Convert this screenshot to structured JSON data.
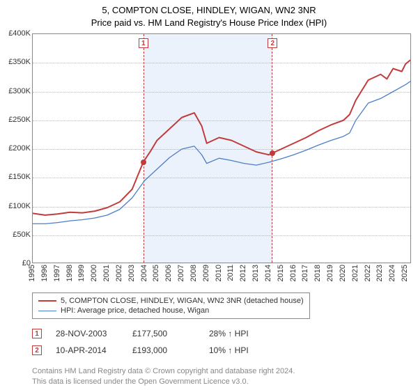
{
  "title_line1": "5, COMPTON CLOSE, HINDLEY, WIGAN, WN2 3NR",
  "title_line2": "Price paid vs. HM Land Registry's House Price Index (HPI)",
  "chart": {
    "type": "line",
    "background_color": "#ffffff",
    "grid_color": "#bbbbbb",
    "border_color": "#888888",
    "x_min": 1995,
    "x_max": 2025.5,
    "years": [
      1995,
      1996,
      1997,
      1998,
      1999,
      2000,
      2001,
      2002,
      2003,
      2004,
      2005,
      2006,
      2007,
      2008,
      2009,
      2010,
      2011,
      2012,
      2013,
      2014,
      2015,
      2016,
      2017,
      2018,
      2019,
      2020,
      2021,
      2022,
      2023,
      2024,
      2025
    ],
    "ylim": [
      0,
      400000
    ],
    "ytick_step": 50000,
    "yticklabels": [
      "£0",
      "£50K",
      "£100K",
      "£150K",
      "£200K",
      "£250K",
      "£300K",
      "£350K",
      "£400K"
    ],
    "shaded_from_year": 2003.9,
    "shaded_to_year": 2014.3,
    "shade_color": "rgba(70,130,220,0.10)",
    "shade_border_color": "#c23b3b",
    "series": [
      {
        "name": "price_paid",
        "label": "5, COMPTON CLOSE, HINDLEY, WIGAN, WN2 3NR (detached house)",
        "color": "#c23b3b",
        "line_width": 2,
        "x": [
          1995,
          1996,
          1997,
          1998,
          1999,
          2000,
          2001,
          2002,
          2003,
          2003.9,
          2004.5,
          2005,
          2006,
          2007,
          2008,
          2008.6,
          2009,
          2010,
          2011,
          2012,
          2013,
          2014,
          2014.3,
          2015,
          2016,
          2017,
          2018,
          2019,
          2020,
          2020.5,
          2021,
          2022,
          2023,
          2023.5,
          2024,
          2024.7,
          2025,
          2025.4
        ],
        "y": [
          88000,
          85000,
          87000,
          90000,
          89000,
          92000,
          98000,
          108000,
          130000,
          177500,
          197000,
          215000,
          235000,
          255000,
          263000,
          240000,
          210000,
          220000,
          215000,
          205000,
          195000,
          190000,
          193000,
          200000,
          210000,
          220000,
          232000,
          242000,
          250000,
          260000,
          285000,
          320000,
          330000,
          322000,
          340000,
          335000,
          348000,
          355000
        ]
      },
      {
        "name": "hpi",
        "label": "HPI: Average price, detached house, Wigan",
        "color": "#4a7ec8",
        "line_width": 1.3,
        "x": [
          1995,
          1996,
          1997,
          1998,
          1999,
          2000,
          2001,
          2002,
          2003,
          2004,
          2005,
          2006,
          2007,
          2008,
          2008.6,
          2009,
          2010,
          2011,
          2012,
          2013,
          2014,
          2015,
          2016,
          2017,
          2018,
          2019,
          2020,
          2020.5,
          2021,
          2022,
          2023,
          2024,
          2025,
          2025.4
        ],
        "y": [
          70000,
          70000,
          72000,
          75000,
          77000,
          80000,
          85000,
          95000,
          115000,
          145000,
          165000,
          185000,
          200000,
          205000,
          190000,
          175000,
          184000,
          180000,
          175000,
          172000,
          177000,
          183000,
          190000,
          198000,
          207000,
          215000,
          222000,
          228000,
          250000,
          280000,
          288000,
          300000,
          312000,
          318000
        ]
      }
    ]
  },
  "sale_markers": [
    {
      "n": "1",
      "year": 2003.9,
      "price": 177500,
      "date": "28-NOV-2003",
      "price_label": "£177,500",
      "delta": "28% ↑ HPI"
    },
    {
      "n": "2",
      "year": 2014.3,
      "price": 193000,
      "date": "10-APR-2014",
      "price_label": "£193,000",
      "delta": "10% ↑ HPI"
    }
  ],
  "legend": {
    "border_color": "#888888"
  },
  "credits_line1": "Contains HM Land Registry data © Crown copyright and database right 2024.",
  "credits_line2": "This data is licensed under the Open Government Licence v3.0."
}
